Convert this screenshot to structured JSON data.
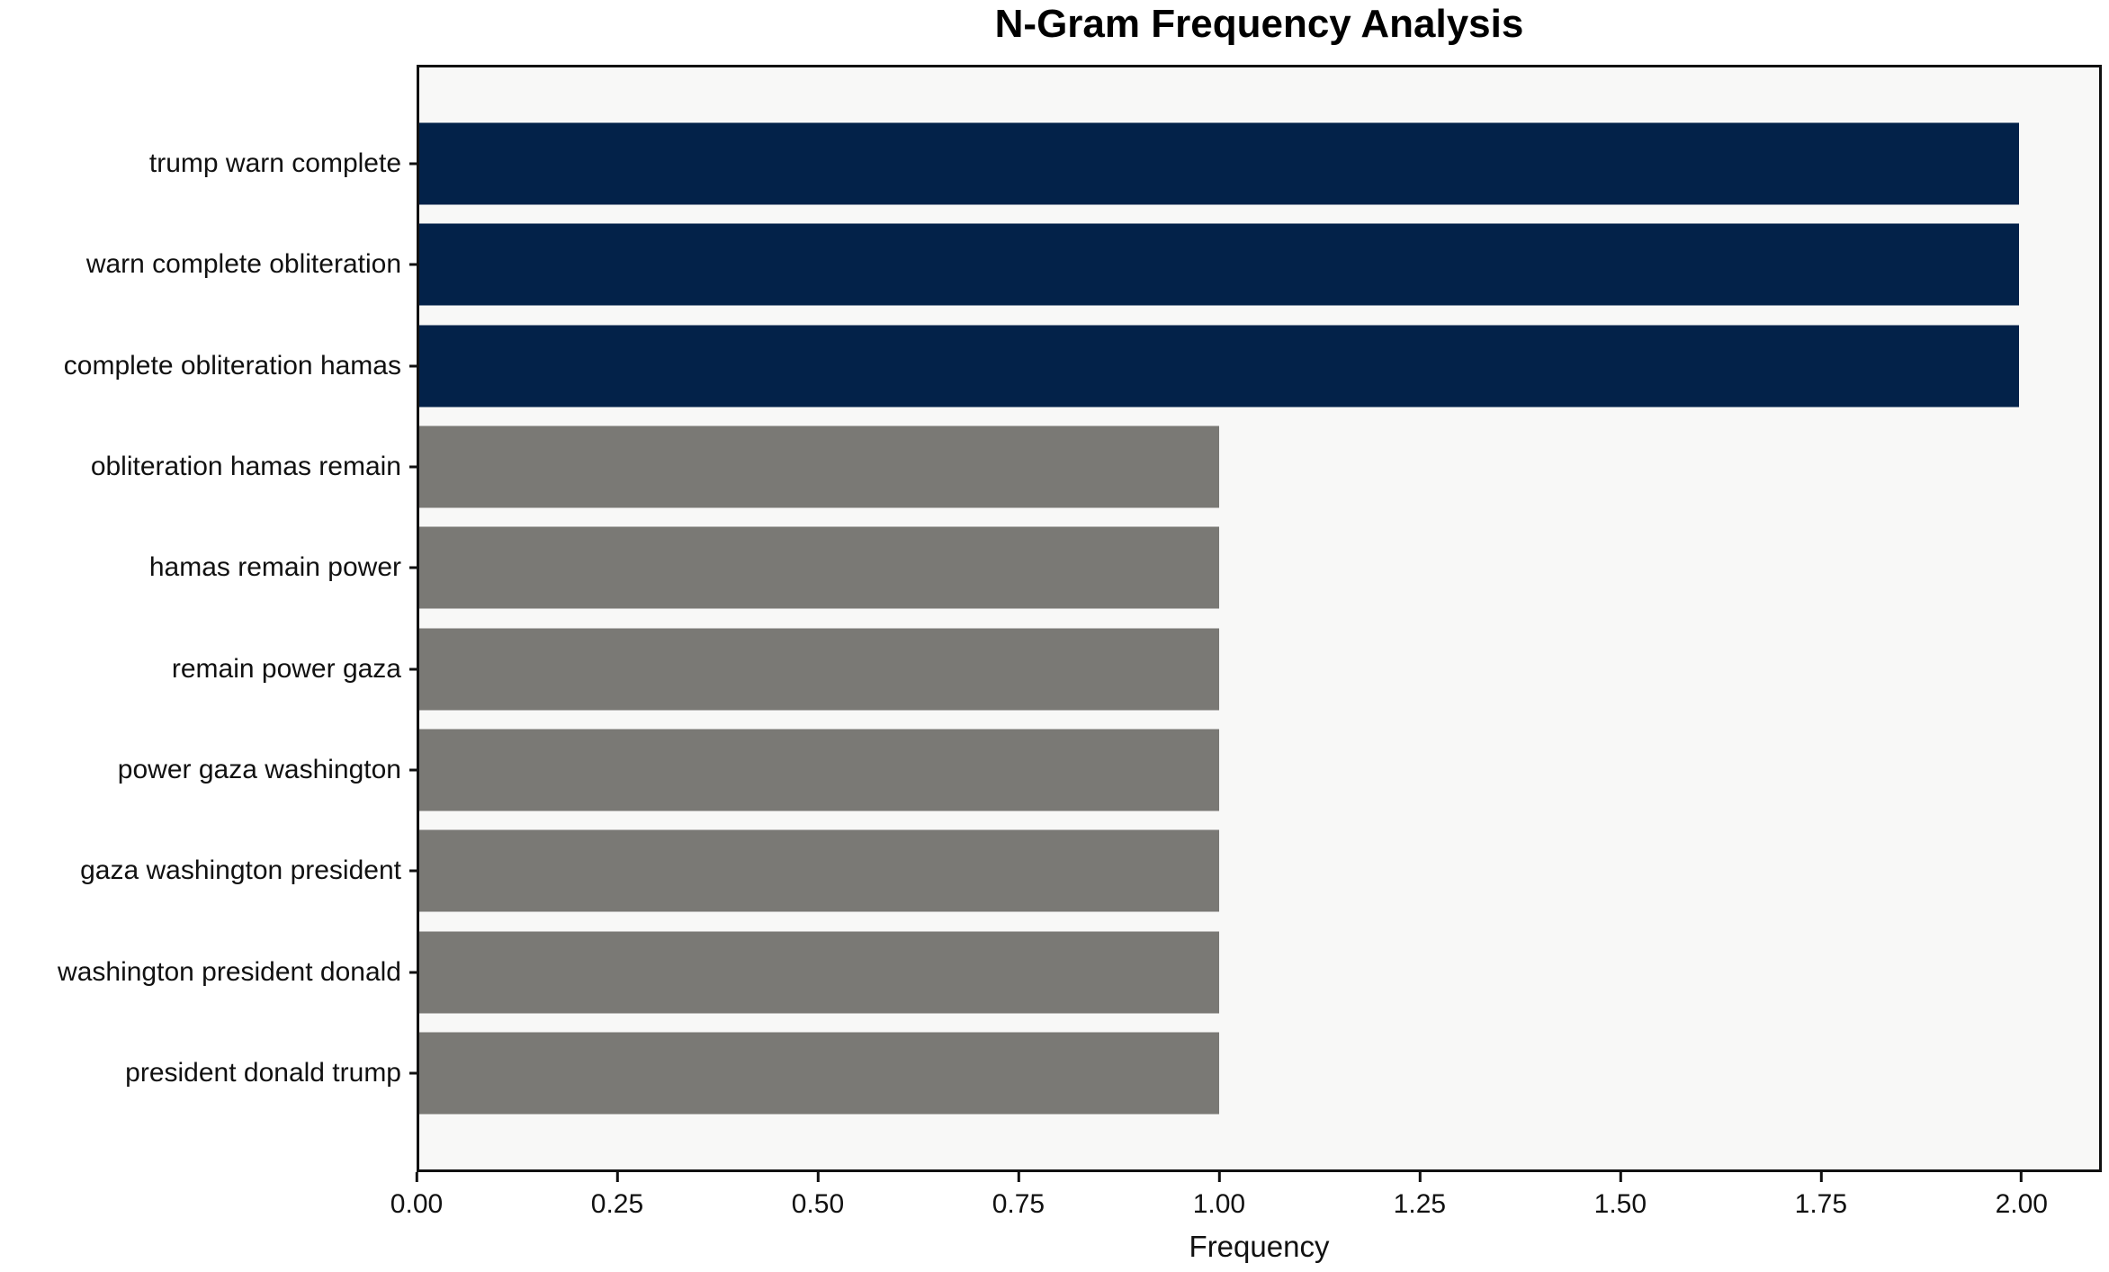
{
  "figure": {
    "background": "#ffffff"
  },
  "chart_data": {
    "type": "bar",
    "orientation": "horizontal",
    "title": "N-Gram Frequency Analysis",
    "xlabel": "Frequency",
    "ylabel": "",
    "categories": [
      "trump warn complete",
      "warn complete obliteration",
      "complete obliteration hamas",
      "obliteration hamas remain",
      "hamas remain power",
      "remain power gaza",
      "power gaza washington",
      "gaza washington president",
      "washington president donald",
      "president donald trump"
    ],
    "values": [
      2,
      2,
      2,
      1,
      1,
      1,
      1,
      1,
      1,
      1
    ],
    "bar_colors": [
      "#032249",
      "#032249",
      "#032249",
      "#7a7975",
      "#7a7975",
      "#7a7975",
      "#7a7975",
      "#7a7975",
      "#7a7975",
      "#7a7975"
    ],
    "colors": {
      "highlight_bar": "#032249",
      "default_bar": "#7a7975",
      "plot_background": "#f8f8f7",
      "spine": "#111111",
      "text": "#111111"
    },
    "xlim": [
      0,
      2.1
    ],
    "xticks": [
      {
        "value": 0,
        "label": "0.00"
      },
      {
        "value": 0.25,
        "label": "0.25"
      },
      {
        "value": 0.5,
        "label": "0.50"
      },
      {
        "value": 0.75,
        "label": "0.75"
      },
      {
        "value": 1,
        "label": "1.00"
      },
      {
        "value": 1.25,
        "label": "1.25"
      },
      {
        "value": 1.5,
        "label": "1.50"
      },
      {
        "value": 1.75,
        "label": "1.75"
      },
      {
        "value": 2,
        "label": "2.00"
      }
    ],
    "grid": false,
    "legend": null
  }
}
